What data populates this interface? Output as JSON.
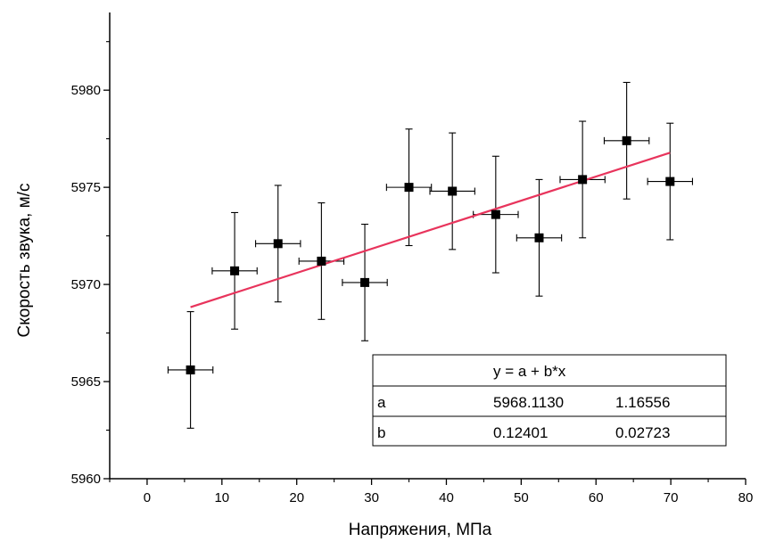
{
  "chart_data": {
    "type": "scatter",
    "title": "",
    "xlabel": "Напряжения, МПа",
    "ylabel": "Скорость звука, м/с",
    "xlim": [
      -5,
      80
    ],
    "ylim": [
      5960,
      5984
    ],
    "x_ticks": [
      0,
      10,
      20,
      30,
      40,
      50,
      60,
      70,
      80
    ],
    "y_ticks": [
      5960,
      5965,
      5970,
      5975,
      5980
    ],
    "x_tick_labels": [
      "0",
      "10",
      "20",
      "30",
      "40",
      "50",
      "60",
      "70",
      "80"
    ],
    "y_tick_labels": [
      "5960",
      "5965",
      "5970",
      "5975",
      "5980"
    ],
    "grid": false,
    "series": [
      {
        "points": [
          {
            "x": 5.8,
            "y": 5965.6,
            "xerr": 3.0,
            "yerr": 3.0
          },
          {
            "x": 11.7,
            "y": 5970.7,
            "xerr": 3.0,
            "yerr": 3.0
          },
          {
            "x": 17.5,
            "y": 5972.1,
            "xerr": 3.0,
            "yerr": 3.0
          },
          {
            "x": 23.3,
            "y": 5971.2,
            "xerr": 3.0,
            "yerr": 3.0
          },
          {
            "x": 29.1,
            "y": 5970.1,
            "xerr": 3.0,
            "yerr": 3.0
          },
          {
            "x": 35.0,
            "y": 5975.0,
            "xerr": 3.0,
            "yerr": 3.0
          },
          {
            "x": 40.8,
            "y": 5974.8,
            "xerr": 3.0,
            "yerr": 3.0
          },
          {
            "x": 46.6,
            "y": 5973.6,
            "xerr": 3.0,
            "yerr": 3.0
          },
          {
            "x": 52.4,
            "y": 5972.4,
            "xerr": 3.0,
            "yerr": 3.0
          },
          {
            "x": 58.2,
            "y": 5975.4,
            "xerr": 3.0,
            "yerr": 3.0
          },
          {
            "x": 64.1,
            "y": 5977.4,
            "xerr": 3.0,
            "yerr": 3.0
          },
          {
            "x": 69.9,
            "y": 5975.3,
            "xerr": 3.0,
            "yerr": 3.0
          }
        ],
        "marker": "square",
        "color": "#000000"
      }
    ],
    "fit_line": {
      "x_range": [
        5.8,
        69.9
      ],
      "a": 5968.113,
      "b": 0.12401,
      "color": "#e8345c"
    },
    "fit_table": {
      "equation": "y = a + b*x",
      "rows": [
        {
          "param": "a",
          "value": "5968.1130",
          "error": "1.16556"
        },
        {
          "param": "b",
          "value": "0.12401",
          "error": "0.02723"
        }
      ],
      "placement": "bottom-right"
    }
  }
}
